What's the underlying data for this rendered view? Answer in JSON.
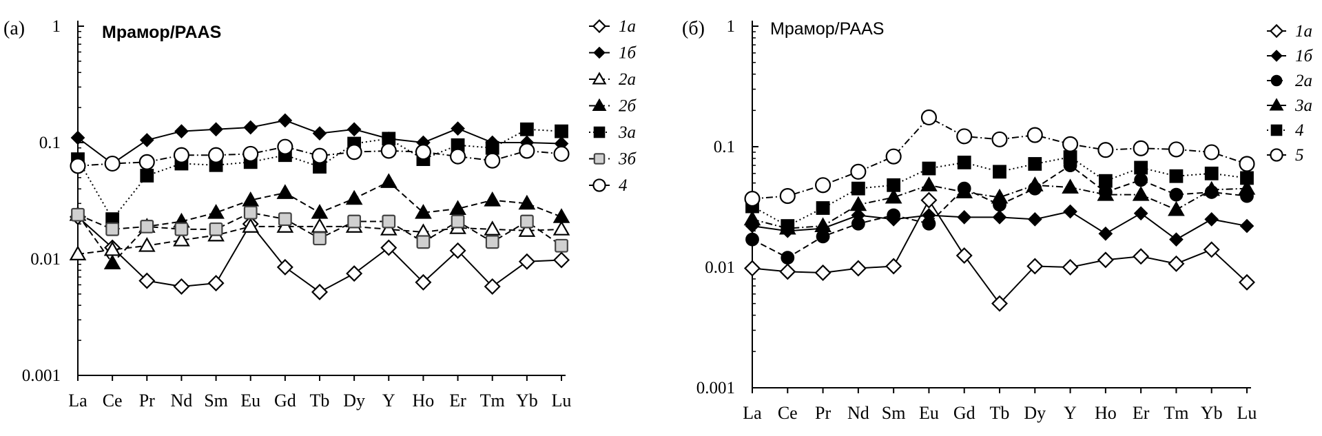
{
  "chart_data": [
    {
      "panel_label": "(а)",
      "type": "line",
      "title": "Мрамор/PAAS",
      "y_scale": "log",
      "ylim": [
        0.001,
        1
      ],
      "y_ticks": [
        "1",
        "0.1",
        "0.01",
        "0.001"
      ],
      "categories": [
        "La",
        "Ce",
        "Pr",
        "Nd",
        "Sm",
        "Eu",
        "Gd",
        "Tb",
        "Dy",
        "Y",
        "Ho",
        "Er",
        "Tm",
        "Yb",
        "Lu"
      ],
      "legend_position": "right",
      "series": [
        {
          "name": "1а",
          "marker": "diamond-open",
          "line": "solid",
          "values": [
            0.023,
            0.0125,
            0.0065,
            0.0058,
            0.0062,
            0.02,
            0.0085,
            0.0052,
            0.0075,
            0.0125,
            0.0063,
            0.0118,
            0.0058,
            0.0095,
            0.0098
          ]
        },
        {
          "name": "1б",
          "marker": "diamond-filled",
          "line": "solid",
          "values": [
            0.11,
            0.066,
            0.105,
            0.125,
            0.13,
            0.135,
            0.155,
            0.12,
            0.13,
            0.108,
            0.1,
            0.132,
            0.1,
            0.1,
            0.098
          ]
        },
        {
          "name": "2а",
          "marker": "triangle-open",
          "line": "dashed",
          "values": [
            0.011,
            0.012,
            0.013,
            0.0145,
            0.016,
            0.019,
            0.019,
            0.019,
            0.019,
            0.018,
            0.017,
            0.0185,
            0.018,
            0.0175,
            0.018
          ]
        },
        {
          "name": "2б",
          "marker": "triangle-filled",
          "line": "dashed",
          "values": [
            0.024,
            0.0092,
            0.019,
            0.021,
            0.025,
            0.032,
            0.037,
            0.025,
            0.033,
            0.046,
            0.025,
            0.027,
            0.032,
            0.03,
            0.023
          ]
        },
        {
          "name": "3а",
          "marker": "square-filled",
          "line": "dotted",
          "values": [
            0.072,
            0.022,
            0.052,
            0.066,
            0.064,
            0.068,
            0.078,
            0.062,
            0.098,
            0.108,
            0.072,
            0.095,
            0.09,
            0.13,
            0.125
          ]
        },
        {
          "name": "3б",
          "marker": "square-gray",
          "line": "dashed",
          "values": [
            0.024,
            0.018,
            0.019,
            0.018,
            0.018,
            0.025,
            0.022,
            0.015,
            0.021,
            0.021,
            0.014,
            0.021,
            0.014,
            0.021,
            0.013
          ]
        },
        {
          "name": "4",
          "marker": "circle-open",
          "line": "dashdot",
          "values": [
            0.063,
            0.066,
            0.068,
            0.078,
            0.078,
            0.08,
            0.092,
            0.077,
            0.083,
            0.085,
            0.083,
            0.076,
            0.07,
            0.085,
            0.08
          ]
        }
      ]
    },
    {
      "panel_label": "(б)",
      "type": "line",
      "title": "Мрамор/PAAS",
      "y_scale": "log",
      "ylim": [
        0.001,
        1
      ],
      "y_ticks": [
        "1",
        "0.1",
        "0.01",
        "0.001"
      ],
      "categories": [
        "La",
        "Ce",
        "Pr",
        "Nd",
        "Sm",
        "Eu",
        "Gd",
        "Tb",
        "Dy",
        "Y",
        "Ho",
        "Er",
        "Tm",
        "Yb",
        "Lu"
      ],
      "legend_position": "right",
      "series": [
        {
          "name": "1а",
          "marker": "diamond-open",
          "line": "solid",
          "values": [
            0.0098,
            0.0092,
            0.009,
            0.0098,
            0.0102,
            0.036,
            0.0125,
            0.005,
            0.0102,
            0.01,
            0.0115,
            0.0123,
            0.0107,
            0.014,
            0.0075
          ]
        },
        {
          "name": "1б",
          "marker": "diamond-filled",
          "line": "solid",
          "values": [
            0.022,
            0.02,
            0.021,
            0.027,
            0.025,
            0.027,
            0.026,
            0.026,
            0.025,
            0.029,
            0.019,
            0.028,
            0.017,
            0.025,
            0.022
          ]
        },
        {
          "name": "2а",
          "marker": "circle-filled",
          "line": "dashed",
          "values": [
            0.017,
            0.012,
            0.018,
            0.023,
            0.027,
            0.023,
            0.045,
            0.033,
            0.045,
            0.07,
            0.042,
            0.053,
            0.04,
            0.042,
            0.039
          ]
        },
        {
          "name": "3а",
          "marker": "triangle-filled",
          "line": "dashdot",
          "values": [
            0.025,
            0.021,
            0.022,
            0.033,
            0.038,
            0.048,
            0.042,
            0.038,
            0.048,
            0.046,
            0.04,
            0.04,
            0.03,
            0.044,
            0.045
          ]
        },
        {
          "name": "4",
          "marker": "square-filled",
          "line": "dotted",
          "values": [
            0.032,
            0.022,
            0.031,
            0.045,
            0.048,
            0.066,
            0.074,
            0.062,
            0.072,
            0.082,
            0.052,
            0.067,
            0.057,
            0.06,
            0.055
          ]
        },
        {
          "name": "5",
          "marker": "circle-open",
          "line": "dashdot",
          "values": [
            0.037,
            0.039,
            0.048,
            0.062,
            0.083,
            0.175,
            0.122,
            0.115,
            0.125,
            0.105,
            0.094,
            0.097,
            0.095,
            0.09,
            0.072
          ]
        }
      ]
    }
  ]
}
